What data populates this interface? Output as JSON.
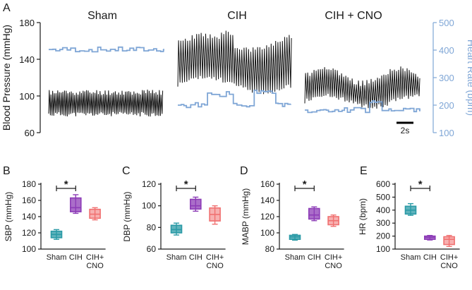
{
  "colors": {
    "axis": "#1a1a1a",
    "trace_bp": "#111111",
    "trace_hr": "#7fa6d6",
    "hr_axis": "#7fa6d6",
    "sham": "#2a9aa6",
    "cih": "#8d3cb7",
    "cno": "#f07070"
  },
  "panel_a": {
    "letter": "A",
    "groups": [
      "Sham",
      "CIH",
      "CIH + CNO"
    ],
    "left_axis": {
      "label": "Blood Pressure (mmHg)",
      "ticks": [
        180,
        140,
        100,
        60
      ],
      "range": [
        60,
        180
      ]
    },
    "right_axis": {
      "label": "Heart Rate (bpm)",
      "ticks": [
        500,
        400,
        300,
        200,
        100
      ],
      "range": [
        100,
        500
      ]
    },
    "scale_bar": "2s"
  },
  "chart_data": [
    {
      "panel": "B",
      "type": "box",
      "ylabel": "SBP (mmHg)",
      "ylim": [
        100,
        180
      ],
      "yticks": [
        100,
        120,
        140,
        160,
        180
      ],
      "categories": [
        "Sham",
        "CIH",
        "CIH+\nCNO"
      ],
      "boxes": [
        {
          "min": 112,
          "q1": 114,
          "median": 118,
          "q3": 122,
          "max": 124
        },
        {
          "min": 144,
          "q1": 146,
          "median": 151,
          "q3": 163,
          "max": 167
        },
        {
          "min": 136,
          "q1": 138,
          "median": 143,
          "q3": 149,
          "max": 151
        }
      ],
      "significance": {
        "from": 0,
        "to": 1,
        "label": "*"
      }
    },
    {
      "panel": "C",
      "type": "box",
      "ylabel": "DBP (mmHg)",
      "ylim": [
        60,
        120
      ],
      "yticks": [
        60,
        80,
        100,
        120
      ],
      "categories": [
        "Sham",
        "CIH",
        "CIH+\nCNO"
      ],
      "boxes": [
        {
          "min": 73,
          "q1": 75,
          "median": 78,
          "q3": 82,
          "max": 84
        },
        {
          "min": 95,
          "q1": 97,
          "median": 100,
          "q3": 106,
          "max": 108
        },
        {
          "min": 83,
          "q1": 86,
          "median": 92,
          "q3": 98,
          "max": 100
        }
      ],
      "significance": {
        "from": 0,
        "to": 1,
        "label": "*"
      }
    },
    {
      "panel": "D",
      "type": "box",
      "ylabel": "MABP (mmHg)",
      "ylim": [
        80,
        160
      ],
      "yticks": [
        80,
        100,
        120,
        140,
        160
      ],
      "categories": [
        "Sham",
        "CIH",
        "CIH+\nCNO"
      ],
      "boxes": [
        {
          "min": 91,
          "q1": 92,
          "median": 95,
          "q3": 97,
          "max": 98
        },
        {
          "min": 115,
          "q1": 117,
          "median": 122,
          "q3": 130,
          "max": 132
        },
        {
          "min": 108,
          "q1": 110,
          "median": 115,
          "q3": 120,
          "max": 122
        }
      ],
      "significance": {
        "from": 0,
        "to": 1,
        "label": "*"
      }
    },
    {
      "panel": "E",
      "type": "box",
      "ylabel": "HR (bpm)",
      "ylim": [
        100,
        600
      ],
      "yticks": [
        100,
        200,
        300,
        400,
        500,
        600
      ],
      "categories": [
        "Sham",
        "CIH",
        "CIH+\nCNO"
      ],
      "boxes": [
        {
          "min": 360,
          "q1": 370,
          "median": 400,
          "q3": 430,
          "max": 450
        },
        {
          "min": 170,
          "q1": 175,
          "median": 190,
          "q3": 200,
          "max": 205
        },
        {
          "min": 120,
          "q1": 135,
          "median": 175,
          "q3": 195,
          "max": 205
        }
      ],
      "significance": {
        "from": 0,
        "to": 1,
        "label": "*"
      }
    }
  ]
}
